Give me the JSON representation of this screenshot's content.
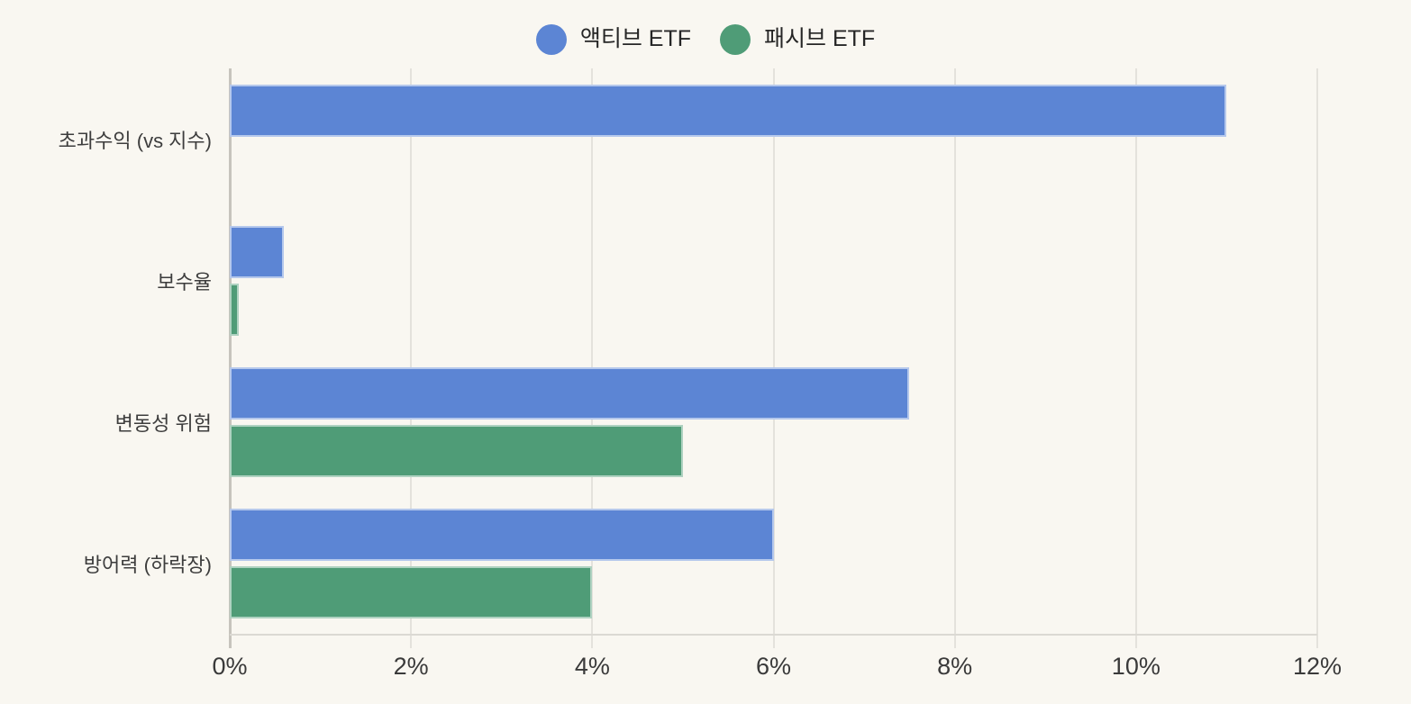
{
  "chart_data": {
    "type": "bar",
    "orientation": "horizontal",
    "categories": [
      "초과수익 (vs 지수)",
      "보수율",
      "변동성 위험",
      "방어력 (하락장)"
    ],
    "series": [
      {
        "name": "액티브 ETF",
        "key": "active",
        "color": "#5c85d4",
        "values": [
          11,
          0.6,
          7.5,
          6
        ]
      },
      {
        "name": "패시브 ETF",
        "key": "passive",
        "color": "#4f9c77",
        "values": [
          0,
          0.1,
          5,
          4
        ]
      }
    ],
    "x_axis": {
      "tick_labels": [
        "0%",
        "2%",
        "4%",
        "6%",
        "8%",
        "10%",
        "12%"
      ],
      "tick_values": [
        0,
        2,
        4,
        6,
        8,
        10,
        12
      ],
      "min": 0,
      "max": 12,
      "unit": "%"
    },
    "ylabel": "",
    "xlabel": "",
    "title": "",
    "grid": true,
    "legend_position": "top",
    "colors": {
      "background": "#f9f7f1",
      "gridline": "#e4e2dc",
      "axis_line": "#c7c4bd",
      "baseline": "#dbd9d3",
      "tick_text": "#3a3a3a",
      "category_text": "#3d3d3d",
      "legend_text": "#262626"
    }
  }
}
